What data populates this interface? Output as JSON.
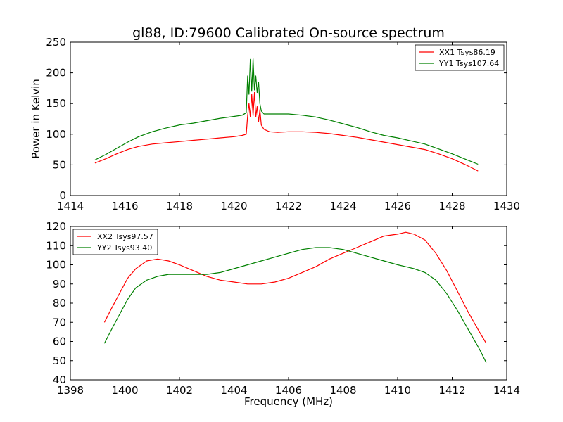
{
  "page": {
    "title": "gl88, ID:79600 Calibrated On-source spectrum",
    "ylabel": "Power in Kelvin",
    "xlabel": "Frequency (MHz)"
  },
  "chart_data": [
    {
      "type": "line",
      "title": "gl88, ID:79600 Calibrated On-source spectrum",
      "xlabel": "",
      "ylabel": "Power in Kelvin",
      "xlim": [
        1414,
        1430
      ],
      "ylim": [
        0,
        250
      ],
      "xticks": [
        1414,
        1416,
        1418,
        1420,
        1422,
        1424,
        1426,
        1428,
        1430
      ],
      "yticks": [
        0,
        50,
        100,
        150,
        200,
        250
      ],
      "grid": false,
      "legend": "top-right",
      "series": [
        {
          "name": "XX1 Tsys86.19",
          "color": "#ff0000",
          "x": [
            1414.9,
            1415.3,
            1415.7,
            1416.1,
            1416.5,
            1417.0,
            1417.5,
            1418.0,
            1418.5,
            1419.0,
            1419.5,
            1420.0,
            1420.3,
            1420.45,
            1420.5,
            1420.55,
            1420.6,
            1420.65,
            1420.7,
            1420.75,
            1420.8,
            1420.85,
            1420.9,
            1420.95,
            1421.0,
            1421.1,
            1421.3,
            1421.6,
            1422.0,
            1422.5,
            1423.0,
            1423.5,
            1424.0,
            1424.5,
            1425.0,
            1425.5,
            1426.0,
            1426.5,
            1427.0,
            1427.5,
            1428.0,
            1428.5,
            1428.95
          ],
          "y": [
            53,
            60,
            68,
            75,
            80,
            84,
            86,
            88,
            90,
            92,
            94,
            96,
            98,
            100,
            130,
            150,
            128,
            165,
            130,
            168,
            128,
            145,
            120,
            140,
            115,
            108,
            104,
            103,
            104,
            104,
            103,
            101,
            98,
            95,
            91,
            87,
            83,
            79,
            75,
            68,
            60,
            50,
            40
          ]
        },
        {
          "name": "YY1 Tsys107.64",
          "color": "#008000",
          "x": [
            1414.9,
            1415.3,
            1415.7,
            1416.1,
            1416.5,
            1417.0,
            1417.5,
            1418.0,
            1418.5,
            1419.0,
            1419.5,
            1420.0,
            1420.3,
            1420.45,
            1420.5,
            1420.55,
            1420.6,
            1420.65,
            1420.7,
            1420.75,
            1420.8,
            1420.85,
            1420.9,
            1420.95,
            1421.0,
            1421.1,
            1421.3,
            1421.6,
            1422.0,
            1422.5,
            1423.0,
            1423.5,
            1424.0,
            1424.5,
            1425.0,
            1425.5,
            1426.0,
            1426.5,
            1427.0,
            1427.5,
            1428.0,
            1428.5,
            1428.95
          ],
          "y": [
            58,
            67,
            77,
            87,
            96,
            104,
            110,
            115,
            118,
            122,
            126,
            129,
            131,
            135,
            195,
            165,
            222,
            170,
            223,
            172,
            195,
            168,
            185,
            150,
            138,
            133,
            133,
            133,
            133,
            131,
            128,
            123,
            117,
            111,
            104,
            98,
            94,
            89,
            84,
            76,
            68,
            59,
            51
          ]
        }
      ]
    },
    {
      "type": "line",
      "title": "",
      "xlabel": "Frequency (MHz)",
      "ylabel": "",
      "xlim": [
        1398,
        1414
      ],
      "ylim": [
        40,
        120
      ],
      "xticks": [
        1398,
        1400,
        1402,
        1404,
        1406,
        1408,
        1410,
        1412,
        1414
      ],
      "yticks": [
        40,
        50,
        60,
        70,
        80,
        90,
        100,
        110,
        120
      ],
      "grid": false,
      "legend": "top-left",
      "series": [
        {
          "name": "XX2 Tsys97.57",
          "color": "#ff0000",
          "x": [
            1399.25,
            1399.5,
            1399.8,
            1400.1,
            1400.4,
            1400.8,
            1401.2,
            1401.6,
            1402.0,
            1402.5,
            1403.0,
            1403.5,
            1404.0,
            1404.5,
            1405.0,
            1405.5,
            1406.0,
            1406.5,
            1407.0,
            1407.5,
            1408.0,
            1408.5,
            1409.0,
            1409.5,
            1410.0,
            1410.3,
            1410.6,
            1411.0,
            1411.4,
            1411.8,
            1412.2,
            1412.6,
            1413.0,
            1413.25
          ],
          "y": [
            70,
            77,
            85,
            93,
            98,
            102,
            103,
            102,
            100,
            97,
            94,
            92,
            91,
            90,
            90,
            91,
            93,
            96,
            99,
            103,
            106,
            109,
            112,
            115,
            116,
            117,
            116,
            113,
            106,
            97,
            86,
            75,
            65,
            59
          ]
        },
        {
          "name": "YY2 Tsys93.40",
          "color": "#008000",
          "x": [
            1399.25,
            1399.5,
            1399.8,
            1400.1,
            1400.4,
            1400.8,
            1401.2,
            1401.6,
            1402.0,
            1402.5,
            1403.0,
            1403.5,
            1404.0,
            1404.5,
            1405.0,
            1405.5,
            1406.0,
            1406.5,
            1407.0,
            1407.5,
            1408.0,
            1408.5,
            1409.0,
            1409.5,
            1410.0,
            1410.3,
            1410.6,
            1411.0,
            1411.4,
            1411.8,
            1412.2,
            1412.6,
            1413.0,
            1413.25
          ],
          "y": [
            59,
            66,
            74,
            82,
            88,
            92,
            94,
            95,
            95,
            95,
            95,
            96,
            98,
            100,
            102,
            104,
            106,
            108,
            109,
            109,
            108,
            106,
            104,
            102,
            100,
            99,
            98,
            96,
            92,
            85,
            76,
            66,
            56,
            49
          ]
        }
      ]
    }
  ]
}
